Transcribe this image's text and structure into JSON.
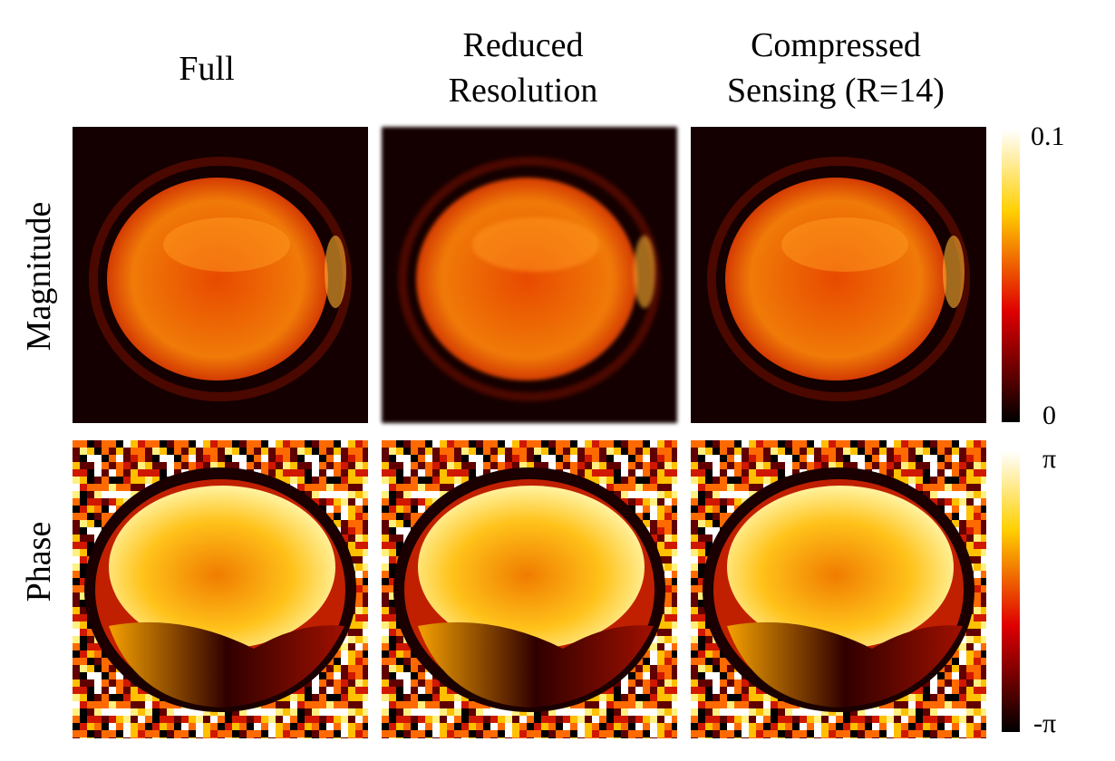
{
  "columns": [
    {
      "lines": [
        "Full"
      ]
    },
    {
      "lines": [
        "Reduced",
        "Resolution"
      ]
    },
    {
      "lines": [
        "Compressed",
        "Sensing (R=14)"
      ]
    }
  ],
  "rows": [
    "Magnitude",
    "Phase"
  ],
  "colorbars": [
    {
      "max": "0.1",
      "min": "0"
    },
    {
      "max": "π",
      "min": "-π"
    }
  ]
}
